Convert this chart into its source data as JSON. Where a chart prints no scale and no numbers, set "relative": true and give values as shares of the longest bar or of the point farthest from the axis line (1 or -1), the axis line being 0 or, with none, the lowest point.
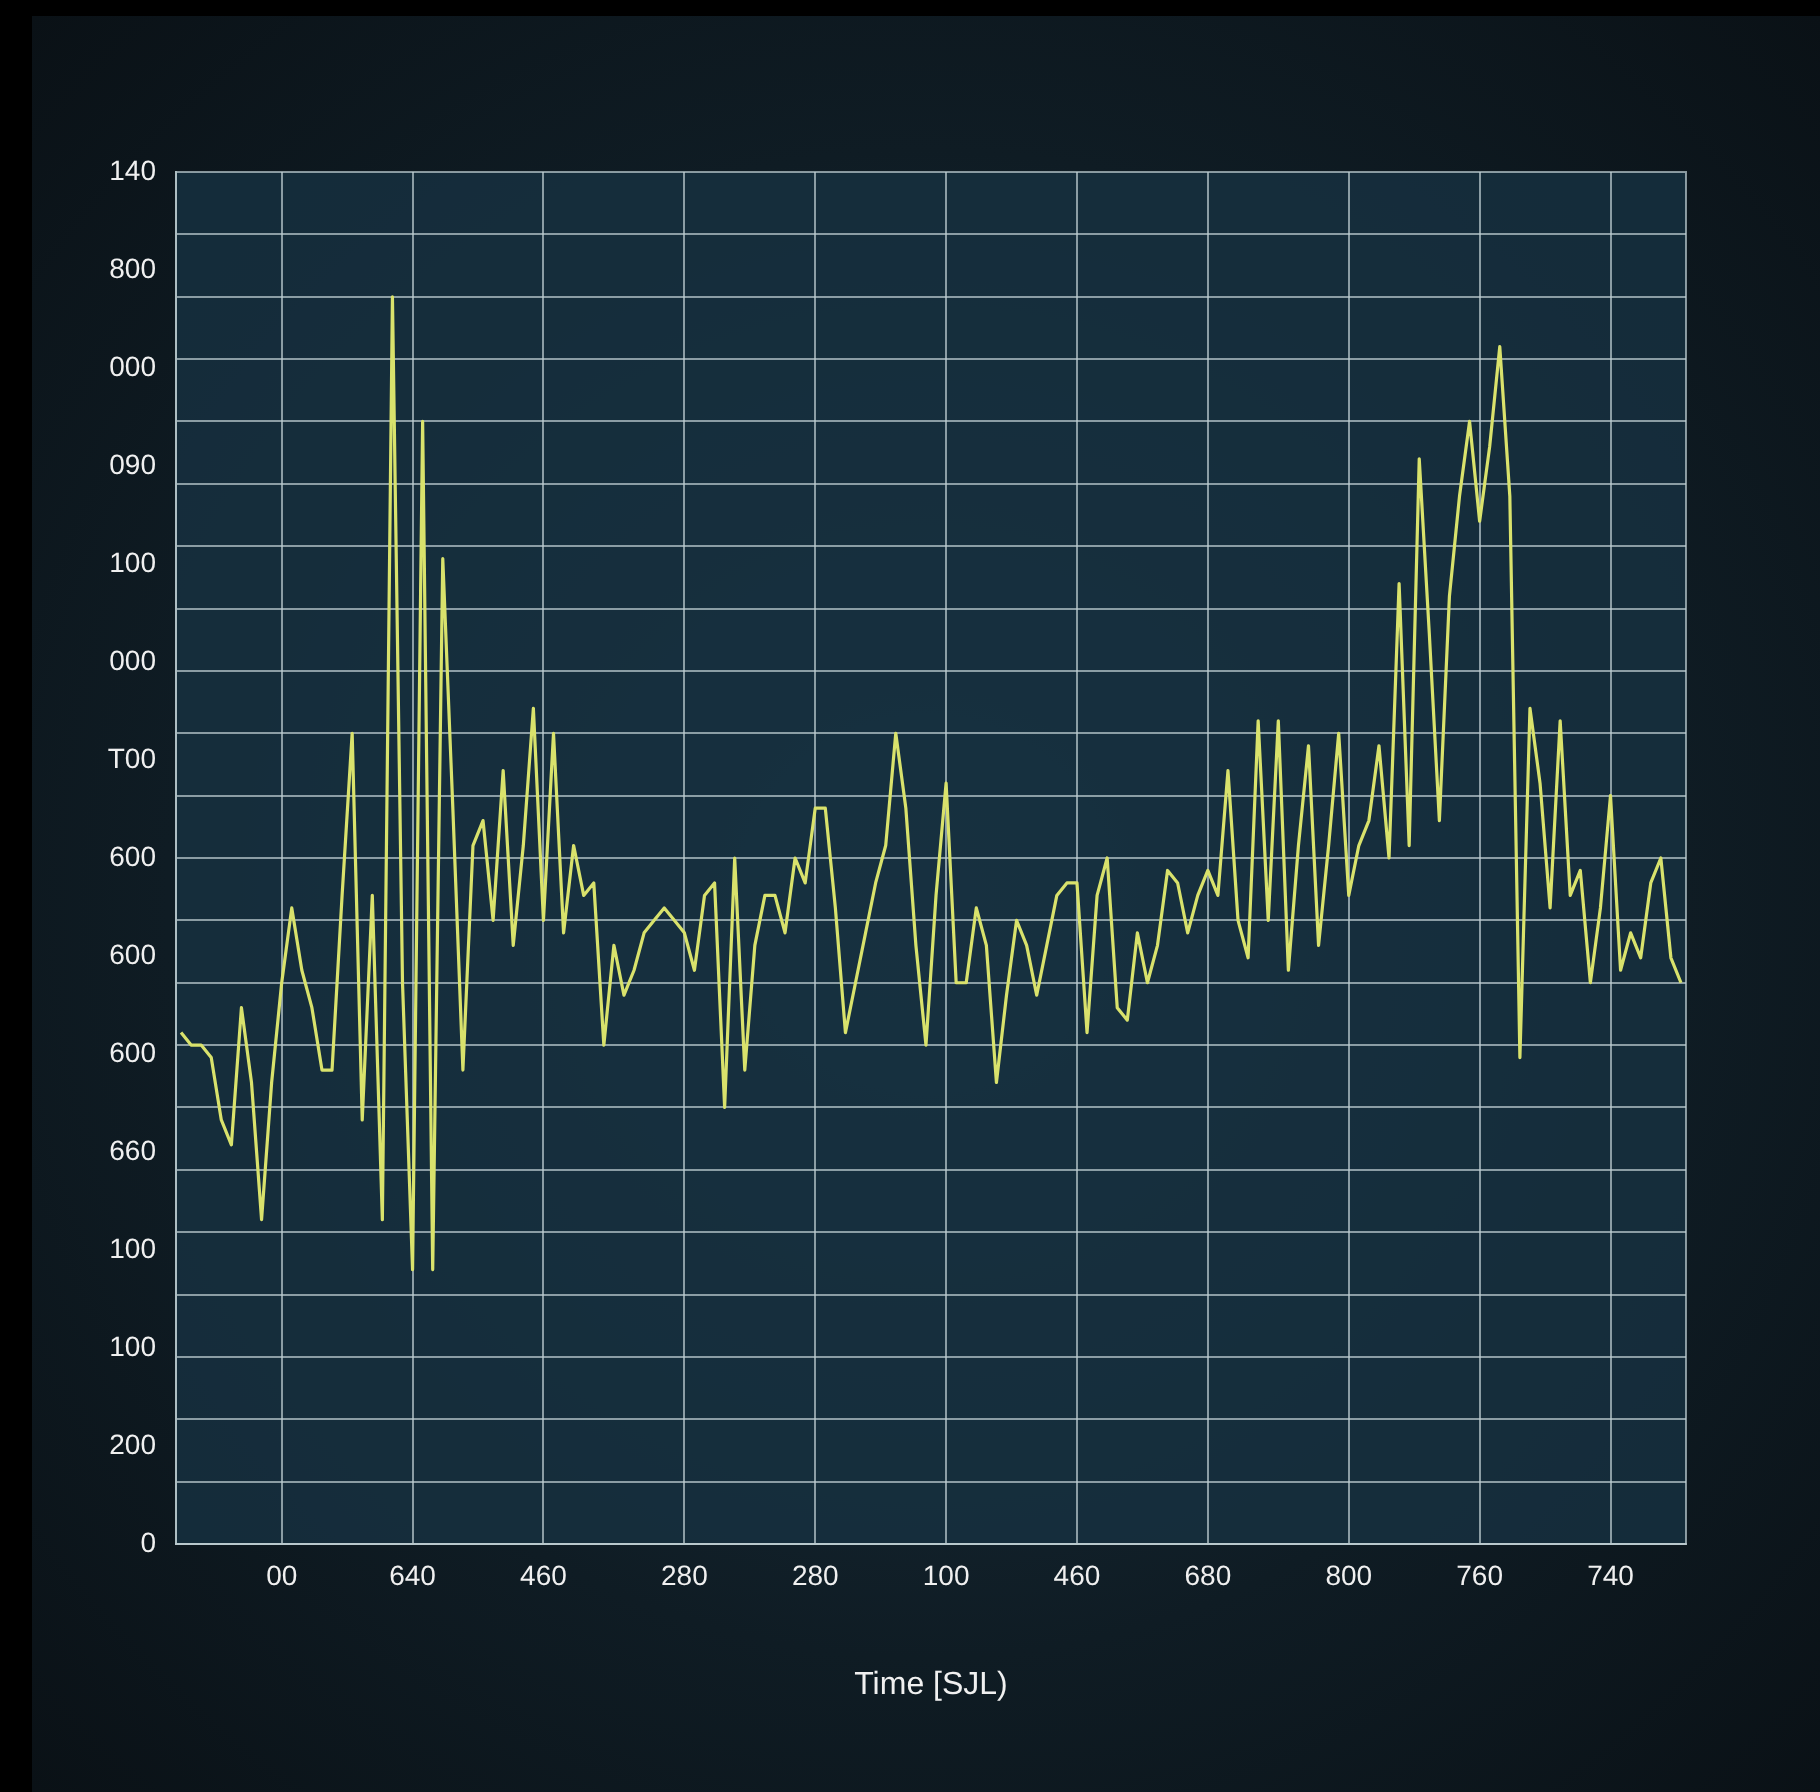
{
  "chart_data": {
    "type": "line",
    "xlabel": "Time [SJL)",
    "relative": true,
    "grid": true,
    "annotations": [
      "0",
      "200",
      "100",
      "100",
      "660",
      "600",
      "600",
      "600",
      "T00",
      "000",
      "100",
      "090",
      "000",
      "800",
      "140"
    ],
    "categories": [
      null,
      null,
      null,
      null,
      null,
      null,
      null,
      null,
      null,
      null,
      "00",
      null,
      null,
      null,
      null,
      null,
      null,
      null,
      null,
      null,
      null,
      null,
      null,
      "640",
      null,
      null,
      null,
      null,
      null,
      null,
      null,
      null,
      null,
      null,
      null,
      null,
      "460",
      null,
      null,
      null,
      null,
      null,
      null,
      null,
      null,
      null,
      null,
      null,
      null,
      null,
      "280",
      null,
      null,
      null,
      null,
      null,
      null,
      null,
      null,
      null,
      null,
      null,
      null,
      "280",
      null,
      null,
      null,
      null,
      null,
      null,
      null,
      null,
      null,
      null,
      null,
      null,
      "100",
      null,
      null,
      null,
      null,
      null,
      null,
      null,
      null,
      null,
      null,
      null,
      null,
      "460",
      null,
      null,
      null,
      null,
      null,
      null,
      null,
      null,
      null,
      null,
      null,
      null,
      "680",
      null,
      null,
      null,
      null,
      null,
      null,
      null,
      null,
      null,
      null,
      null,
      null,
      null,
      "800",
      null,
      null,
      null,
      null,
      null,
      null,
      null,
      null,
      null,
      null,
      null,
      null,
      "760",
      null,
      null,
      null,
      null,
      null,
      null,
      null,
      null,
      null,
      null,
      null,
      null,
      "740",
      null,
      null,
      null,
      null,
      null,
      null,
      null
    ],
    "series": [
      {
        "color": "#d9e26c",
        "values": [
          0.41,
          0.4,
          0.4,
          0.39,
          0.34,
          0.32,
          0.43,
          0.37,
          0.26,
          0.37,
          0.45,
          0.51,
          0.46,
          0.43,
          0.38,
          0.38,
          0.52,
          0.65,
          0.34,
          0.52,
          0.26,
          1,
          0.45,
          0.22,
          0.9,
          0.22,
          0.79,
          0.59,
          0.38,
          0.56,
          0.58,
          0.5,
          0.62,
          0.48,
          0.56,
          0.67,
          0.5,
          0.65,
          0.49,
          0.56,
          0.52,
          0.53,
          0.4,
          0.48,
          0.44,
          0.46,
          0.49,
          0.5,
          0.51,
          0.5,
          0.49,
          0.46,
          0.52,
          0.53,
          0.35,
          0.55,
          0.38,
          0.48,
          0.52,
          0.52,
          0.49,
          0.55,
          0.53,
          0.59,
          0.59,
          0.51,
          0.41,
          0.45,
          0.49,
          0.53,
          0.56,
          0.65,
          0.59,
          0.48,
          0.4,
          0.52,
          0.61,
          0.45,
          0.45,
          0.51,
          0.48,
          0.37,
          0.44,
          0.5,
          0.48,
          0.44,
          0.48,
          0.52,
          0.53,
          0.53,
          0.41,
          0.52,
          0.55,
          0.43,
          0.42,
          0.49,
          0.45,
          0.48,
          0.54,
          0.53,
          0.49,
          0.52,
          0.54,
          0.52,
          0.62,
          0.5,
          0.47,
          0.66,
          0.5,
          0.66,
          0.46,
          0.56,
          0.64,
          0.48,
          0.56,
          0.65,
          0.52,
          0.56,
          0.58,
          0.64,
          0.55,
          0.77,
          0.56,
          0.87,
          0.73,
          0.58,
          0.76,
          0.84,
          0.9,
          0.82,
          0.88,
          0.96,
          0.84,
          0.39,
          0.67,
          0.61,
          0.51,
          0.66,
          0.52,
          0.54,
          0.45,
          0.51,
          0.6,
          0.46,
          0.49,
          0.47,
          0.53,
          0.55,
          0.47,
          0.45
        ]
      }
    ]
  }
}
